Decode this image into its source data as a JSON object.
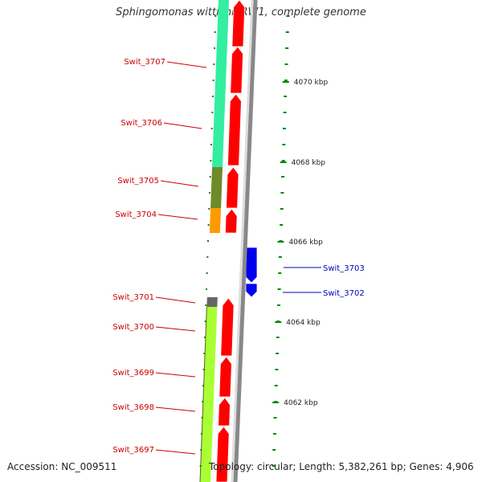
{
  "title": "Sphingomonas wittichii RW1, complete genome",
  "footer": {
    "accession": "Accession: NC_009511",
    "topology": "Topology: circular; Length: 5,382,261 bp; Genes: 4,906"
  },
  "colors": {
    "left_label": "#cc0000",
    "right_label": "#0000bb",
    "cds_forward": "#ff0000",
    "cds_reverse": "#0000ee",
    "backbone": "#888888",
    "tick": "#008800",
    "cog_mint": "#33eea0",
    "cog_olive": "#6f8a2a",
    "cog_orange": "#ff9900",
    "cog_grey": "#666666",
    "cog_lime": "#aaff33"
  },
  "diagram": {
    "kbp_ticks": [
      "4070 kbp",
      "4068 kbp",
      "4066 kbp",
      "4064 kbp",
      "4062 kbp"
    ],
    "left_genes": [
      "Swit_3707",
      "Swit_3706",
      "Swit_3705",
      "Swit_3704",
      "Swit_3701",
      "Swit_3700",
      "Swit_3699",
      "Swit_3698",
      "Swit_3697"
    ],
    "right_genes": [
      "Swit_3703",
      "Swit_3702"
    ]
  }
}
